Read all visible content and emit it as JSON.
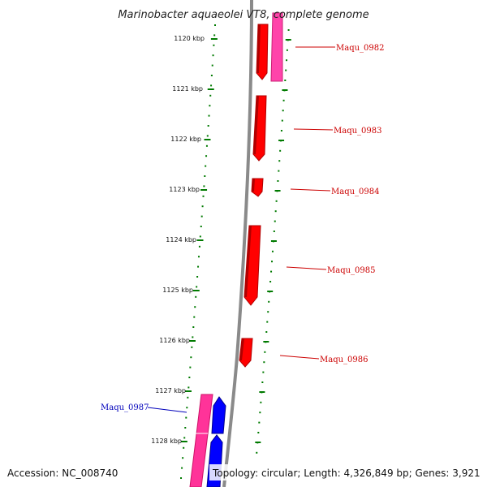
{
  "map": {
    "title": "Marinobacter aquaeolei VT8, complete genome",
    "accession": "Accession: NC_008740",
    "topology": "Topology: circular; Length: 4,326,849 bp; Genes: 3,921"
  },
  "kbp_ticks": [
    {
      "label": "1120 kbp",
      "kbp": 1120
    },
    {
      "label": "1121 kbp",
      "kbp": 1121
    },
    {
      "label": "1122 kbp",
      "kbp": 1122
    },
    {
      "label": "1123 kbp",
      "kbp": 1123
    },
    {
      "label": "1124 kbp",
      "kbp": 1124
    },
    {
      "label": "1125 kbp",
      "kbp": 1125
    },
    {
      "label": "1126 kbp",
      "kbp": 1126
    },
    {
      "label": "1127 kbp",
      "kbp": 1127
    },
    {
      "label": "1128 kbp",
      "kbp": 1128
    }
  ],
  "genes": [
    {
      "name": "Maqu_0982",
      "strand": "forward",
      "color": "#ff0000"
    },
    {
      "name": "Maqu_0983",
      "strand": "forward",
      "color": "#ff0000"
    },
    {
      "name": "Maqu_0984",
      "strand": "forward",
      "color": "#ff0000"
    },
    {
      "name": "Maqu_0985",
      "strand": "forward",
      "color": "#ff0000"
    },
    {
      "name": "Maqu_0986",
      "strand": "forward",
      "color": "#ff0000"
    },
    {
      "name": "Maqu_0987",
      "strand": "reverse",
      "color": "#0000cc"
    }
  ],
  "colors": {
    "backbone": "#888888",
    "tick_marks": "#007a00",
    "forward_gene": "#ff0000",
    "reverse_gene": "#0000ff",
    "rna_feature": "#ff3399",
    "forward_label": "#cc0000",
    "reverse_label": "#0000bb"
  }
}
